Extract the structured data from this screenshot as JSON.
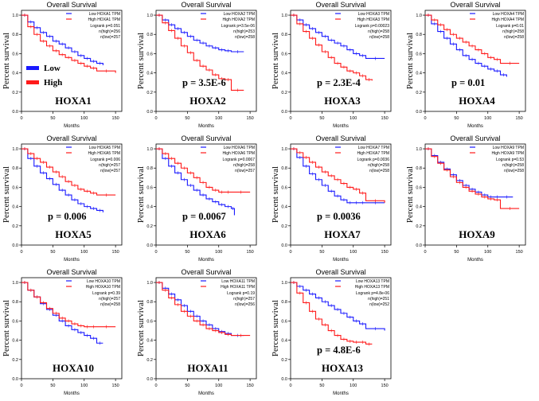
{
  "figure": {
    "common": {
      "ylabel": "Percent survival",
      "xlabel": "Months",
      "title_prefix": "Overall Survival",
      "low_color": "#1a1aff",
      "high_color": "#ff1a1a",
      "xticks": [
        0,
        50,
        100,
        150
      ],
      "yticks": [
        0.0,
        0.2,
        0.4,
        0.6,
        0.8,
        1.0
      ],
      "xlim": [
        0,
        160
      ],
      "ylim": [
        0,
        1.05
      ]
    },
    "overlay_legend": {
      "low_label": "Low",
      "high_label": "High",
      "low_color": "#1a1aff",
      "high_color": "#ff1a1a"
    }
  },
  "chart_data": [
    {
      "type": "line",
      "gene": "HOXA1",
      "title": "Overall Survival",
      "xlabel": "Months",
      "ylabel": "Percent survival",
      "legend": [
        "Low HOXA1 TPM",
        "High HOXA1 TPM"
      ],
      "stats": [
        "Logrank p=0.051",
        "n(high)=256",
        "n(low)=257"
      ],
      "pvalue_label": "",
      "series": [
        {
          "name": "Low HOXA1 TPM",
          "color": "#1a1aff",
          "x": [
            0,
            10,
            20,
            30,
            40,
            50,
            60,
            70,
            80,
            90,
            100,
            110,
            120,
            130
          ],
          "y": [
            1.0,
            0.93,
            0.87,
            0.82,
            0.78,
            0.73,
            0.7,
            0.66,
            0.62,
            0.58,
            0.55,
            0.52,
            0.5,
            0.48
          ]
        },
        {
          "name": "High HOXA1 TPM",
          "color": "#ff1a1a",
          "x": [
            0,
            10,
            20,
            30,
            40,
            50,
            60,
            70,
            80,
            90,
            100,
            110,
            120,
            150
          ],
          "y": [
            1.0,
            0.88,
            0.8,
            0.73,
            0.68,
            0.63,
            0.59,
            0.56,
            0.53,
            0.5,
            0.47,
            0.45,
            0.42,
            0.4
          ]
        }
      ]
    },
    {
      "type": "line",
      "gene": "HOXA2",
      "title": "Overall Survival",
      "xlabel": "Months",
      "ylabel": "Percent survival",
      "legend": [
        "Low HOXA2 TPM",
        "High HOXA2 TPM"
      ],
      "stats": [
        "Logrank p=3.5e-06",
        "n(high)=253",
        "n(low)=258"
      ],
      "pvalue_label": "p = 3.5E-6",
      "series": [
        {
          "name": "Low HOXA2 TPM",
          "color": "#1a1aff",
          "x": [
            0,
            10,
            20,
            30,
            40,
            50,
            60,
            70,
            80,
            90,
            100,
            110,
            120,
            140
          ],
          "y": [
            1.0,
            0.95,
            0.9,
            0.86,
            0.82,
            0.78,
            0.74,
            0.71,
            0.68,
            0.66,
            0.64,
            0.63,
            0.62,
            0.62
          ]
        },
        {
          "name": "High HOXA2 TPM",
          "color": "#ff1a1a",
          "x": [
            0,
            10,
            20,
            30,
            40,
            50,
            60,
            70,
            80,
            90,
            100,
            110,
            120,
            140
          ],
          "y": [
            1.0,
            0.92,
            0.84,
            0.76,
            0.68,
            0.61,
            0.53,
            0.47,
            0.43,
            0.38,
            0.34,
            0.33,
            0.22,
            0.22
          ]
        }
      ]
    },
    {
      "type": "line",
      "gene": "HOXA3",
      "title": "Overall Survival",
      "xlabel": "Months",
      "ylabel": "Percent survival",
      "legend": [
        "Low HOXA3 TPM",
        "High HOXA3 TPM"
      ],
      "stats": [
        "Logrank p=0.00023",
        "n(high)=258",
        "n(low)=258"
      ],
      "pvalue_label": "p = 2.3E-4",
      "series": [
        {
          "name": "Low HOXA3 TPM",
          "color": "#1a1aff",
          "x": [
            0,
            10,
            20,
            30,
            40,
            50,
            60,
            70,
            80,
            90,
            100,
            110,
            120,
            150
          ],
          "y": [
            1.0,
            0.95,
            0.9,
            0.86,
            0.82,
            0.78,
            0.74,
            0.71,
            0.68,
            0.64,
            0.6,
            0.58,
            0.55,
            0.55
          ]
        },
        {
          "name": "High HOXA3 TPM",
          "color": "#ff1a1a",
          "x": [
            0,
            10,
            20,
            30,
            40,
            50,
            60,
            70,
            80,
            90,
            100,
            110,
            120,
            130
          ],
          "y": [
            1.0,
            0.91,
            0.83,
            0.76,
            0.69,
            0.62,
            0.56,
            0.5,
            0.46,
            0.42,
            0.4,
            0.37,
            0.33,
            0.32
          ]
        }
      ]
    },
    {
      "type": "line",
      "gene": "HOXA4",
      "title": "Overall Survival",
      "xlabel": "Months",
      "ylabel": "Percent survival",
      "legend": [
        "Low HOXA4 TPM",
        "High HOXA4 TPM"
      ],
      "stats": [
        "Logrank p=0.01",
        "n(high)=258",
        "n(low)=258"
      ],
      "pvalue_label": "p = 0.01",
      "series": [
        {
          "name": "Low HOXA4 TPM",
          "color": "#1a1aff",
          "x": [
            0,
            10,
            20,
            30,
            40,
            50,
            60,
            70,
            80,
            90,
            100,
            110,
            120,
            130
          ],
          "y": [
            1.0,
            0.91,
            0.83,
            0.76,
            0.7,
            0.64,
            0.58,
            0.54,
            0.5,
            0.47,
            0.44,
            0.42,
            0.38,
            0.36
          ]
        },
        {
          "name": "High HOXA4 TPM",
          "color": "#ff1a1a",
          "x": [
            0,
            10,
            20,
            30,
            40,
            50,
            60,
            70,
            80,
            90,
            100,
            110,
            120,
            150
          ],
          "y": [
            1.0,
            0.95,
            0.9,
            0.85,
            0.8,
            0.76,
            0.72,
            0.68,
            0.64,
            0.6,
            0.56,
            0.54,
            0.5,
            0.5
          ]
        }
      ]
    },
    {
      "type": "line",
      "gene": "HOXA5",
      "title": "Overall Survival",
      "xlabel": "Months",
      "ylabel": "Percent survival",
      "legend": [
        "Low HOXA5 TPM",
        "High HOXA5 TPM"
      ],
      "stats": [
        "Logrank p=0.006",
        "n(high)=257",
        "n(low)=257"
      ],
      "pvalue_label": "p = 0.006",
      "series": [
        {
          "name": "Low HOXA5 TPM",
          "color": "#1a1aff",
          "x": [
            0,
            10,
            20,
            30,
            40,
            50,
            60,
            70,
            80,
            90,
            100,
            110,
            120,
            130
          ],
          "y": [
            1.0,
            0.9,
            0.82,
            0.75,
            0.69,
            0.63,
            0.57,
            0.52,
            0.47,
            0.43,
            0.4,
            0.38,
            0.36,
            0.34
          ]
        },
        {
          "name": "High HOXA5 TPM",
          "color": "#ff1a1a",
          "x": [
            0,
            10,
            20,
            30,
            40,
            50,
            60,
            70,
            80,
            90,
            100,
            110,
            120,
            150
          ],
          "y": [
            1.0,
            0.95,
            0.9,
            0.86,
            0.81,
            0.76,
            0.71,
            0.66,
            0.62,
            0.58,
            0.56,
            0.54,
            0.52,
            0.52
          ]
        }
      ]
    },
    {
      "type": "line",
      "gene": "HOXA6",
      "title": "Overall Survival",
      "xlabel": "Months",
      "ylabel": "Percent survival",
      "legend": [
        "Low HOXA6 TPM",
        "High HOXA6 TPM"
      ],
      "stats": [
        "Logrank p=0.0067",
        "n(high)=258",
        "n(low)=257"
      ],
      "pvalue_label": "p = 0.0067",
      "series": [
        {
          "name": "Low HOXA6 TPM",
          "color": "#1a1aff",
          "x": [
            0,
            10,
            20,
            30,
            40,
            50,
            60,
            70,
            80,
            90,
            100,
            110,
            120,
            125
          ],
          "y": [
            1.0,
            0.9,
            0.82,
            0.75,
            0.68,
            0.62,
            0.57,
            0.52,
            0.48,
            0.45,
            0.42,
            0.4,
            0.38,
            0.31
          ]
        },
        {
          "name": "High HOXA6 TPM",
          "color": "#ff1a1a",
          "x": [
            0,
            10,
            20,
            30,
            40,
            50,
            60,
            70,
            80,
            90,
            100,
            110,
            120,
            150
          ],
          "y": [
            1.0,
            0.95,
            0.9,
            0.85,
            0.8,
            0.75,
            0.7,
            0.65,
            0.6,
            0.57,
            0.55,
            0.55,
            0.55,
            0.55
          ]
        }
      ]
    },
    {
      "type": "line",
      "gene": "HOXA7",
      "title": "Overall Survival",
      "xlabel": "Months",
      "ylabel": "Percent survival",
      "legend": [
        "Low HOXA7 TPM",
        "High HOXA7 TPM"
      ],
      "stats": [
        "Logrank p=0.0036",
        "n(high)=258",
        "n(low)=258"
      ],
      "pvalue_label": "p = 0.0036",
      "series": [
        {
          "name": "Low HOXA7 TPM",
          "color": "#1a1aff",
          "x": [
            0,
            10,
            20,
            30,
            40,
            50,
            60,
            70,
            80,
            90,
            100,
            110,
            120,
            150
          ],
          "y": [
            1.0,
            0.91,
            0.82,
            0.74,
            0.68,
            0.62,
            0.56,
            0.51,
            0.47,
            0.44,
            0.44,
            0.44,
            0.44,
            0.44
          ]
        },
        {
          "name": "High HOXA7 TPM",
          "color": "#ff1a1a",
          "x": [
            0,
            10,
            20,
            30,
            40,
            50,
            60,
            70,
            80,
            90,
            100,
            110,
            120,
            150
          ],
          "y": [
            1.0,
            0.96,
            0.91,
            0.86,
            0.81,
            0.76,
            0.72,
            0.68,
            0.64,
            0.6,
            0.58,
            0.54,
            0.46,
            0.44
          ]
        }
      ]
    },
    {
      "type": "line",
      "gene": "HOXA9",
      "title": "Overall Survival",
      "xlabel": "Months",
      "ylabel": "Percent survival",
      "legend": [
        "Low HOXA9 TPM",
        "High HOXA9 TPM"
      ],
      "stats": [
        "Logrank p=0.53",
        "n(high)=258",
        "n(low)=258"
      ],
      "pvalue_label": "",
      "series": [
        {
          "name": "Low HOXA9 TPM",
          "color": "#1a1aff",
          "x": [
            0,
            10,
            20,
            30,
            40,
            50,
            60,
            70,
            80,
            90,
            100,
            110,
            120,
            140
          ],
          "y": [
            1.0,
            0.93,
            0.86,
            0.79,
            0.73,
            0.67,
            0.62,
            0.58,
            0.55,
            0.52,
            0.5,
            0.5,
            0.5,
            0.5
          ]
        },
        {
          "name": "High HOXA9 TPM",
          "color": "#ff1a1a",
          "x": [
            0,
            10,
            20,
            30,
            40,
            50,
            60,
            70,
            80,
            90,
            100,
            110,
            120,
            150
          ],
          "y": [
            1.0,
            0.92,
            0.85,
            0.78,
            0.71,
            0.65,
            0.6,
            0.56,
            0.53,
            0.5,
            0.48,
            0.47,
            0.38,
            0.38
          ]
        }
      ]
    },
    {
      "type": "line",
      "gene": "HOXA10",
      "title": "Overall Survival",
      "xlabel": "Months",
      "ylabel": "Percent survival",
      "legend": [
        "Low HOXA10 TPM",
        "High HOXA10 TPM"
      ],
      "stats": [
        "Logrank p=0.39",
        "n(high)=257",
        "n(low)=258"
      ],
      "pvalue_label": "",
      "series": [
        {
          "name": "Low HOXA10 TPM",
          "color": "#1a1aff",
          "x": [
            0,
            10,
            20,
            30,
            40,
            50,
            60,
            70,
            80,
            90,
            100,
            110,
            120,
            130
          ],
          "y": [
            1.0,
            0.92,
            0.85,
            0.78,
            0.72,
            0.66,
            0.6,
            0.55,
            0.51,
            0.48,
            0.45,
            0.42,
            0.37,
            0.37
          ]
        },
        {
          "name": "High HOXA10 TPM",
          "color": "#ff1a1a",
          "x": [
            0,
            10,
            20,
            30,
            40,
            50,
            60,
            70,
            80,
            90,
            100,
            110,
            120,
            150
          ],
          "y": [
            1.0,
            0.92,
            0.85,
            0.79,
            0.73,
            0.68,
            0.63,
            0.6,
            0.57,
            0.55,
            0.54,
            0.54,
            0.54,
            0.54
          ]
        }
      ]
    },
    {
      "type": "line",
      "gene": "HOXA11",
      "title": "Overall Survival",
      "xlabel": "Months",
      "ylabel": "Percent survival",
      "legend": [
        "Low HOXA11 TPM",
        "High HOXA11 TPM"
      ],
      "stats": [
        "Logrank p=0.19",
        "n(high)=257",
        "n(low)=256"
      ],
      "pvalue_label": "",
      "series": [
        {
          "name": "Low HOXA11 TPM",
          "color": "#1a1aff",
          "x": [
            0,
            10,
            20,
            30,
            40,
            50,
            60,
            70,
            80,
            90,
            100,
            110,
            120,
            140
          ],
          "y": [
            1.0,
            0.94,
            0.88,
            0.82,
            0.76,
            0.7,
            0.65,
            0.6,
            0.56,
            0.52,
            0.49,
            0.47,
            0.45,
            0.45
          ]
        },
        {
          "name": "High HOXA11 TPM",
          "color": "#ff1a1a",
          "x": [
            0,
            10,
            20,
            30,
            40,
            50,
            60,
            70,
            80,
            90,
            100,
            110,
            120,
            150
          ],
          "y": [
            1.0,
            0.92,
            0.84,
            0.77,
            0.7,
            0.65,
            0.6,
            0.56,
            0.52,
            0.5,
            0.48,
            0.46,
            0.45,
            0.45
          ]
        }
      ]
    },
    {
      "type": "line",
      "gene": "HOXA13",
      "title": "Overall Survival",
      "xlabel": "Months",
      "ylabel": "Percent survival",
      "legend": [
        "Low HOXA13 TPM",
        "High HOXA13 TPM"
      ],
      "stats": [
        "Logrank p=4.8e-06",
        "n(high)=251",
        "n(low)=252"
      ],
      "pvalue_label": "p = 4.8E-6",
      "series": [
        {
          "name": "Low HOXA13 TPM",
          "color": "#1a1aff",
          "x": [
            0,
            10,
            20,
            30,
            40,
            50,
            60,
            70,
            80,
            90,
            100,
            110,
            120,
            150
          ],
          "y": [
            1.0,
            0.96,
            0.92,
            0.88,
            0.84,
            0.8,
            0.76,
            0.72,
            0.68,
            0.64,
            0.6,
            0.57,
            0.52,
            0.5
          ]
        },
        {
          "name": "High HOXA13 TPM",
          "color": "#ff1a1a",
          "x": [
            0,
            10,
            20,
            30,
            40,
            50,
            60,
            70,
            80,
            90,
            100,
            110,
            120,
            130
          ],
          "y": [
            1.0,
            0.89,
            0.79,
            0.7,
            0.62,
            0.56,
            0.5,
            0.45,
            0.41,
            0.39,
            0.38,
            0.38,
            0.36,
            0.36
          ]
        }
      ]
    }
  ]
}
